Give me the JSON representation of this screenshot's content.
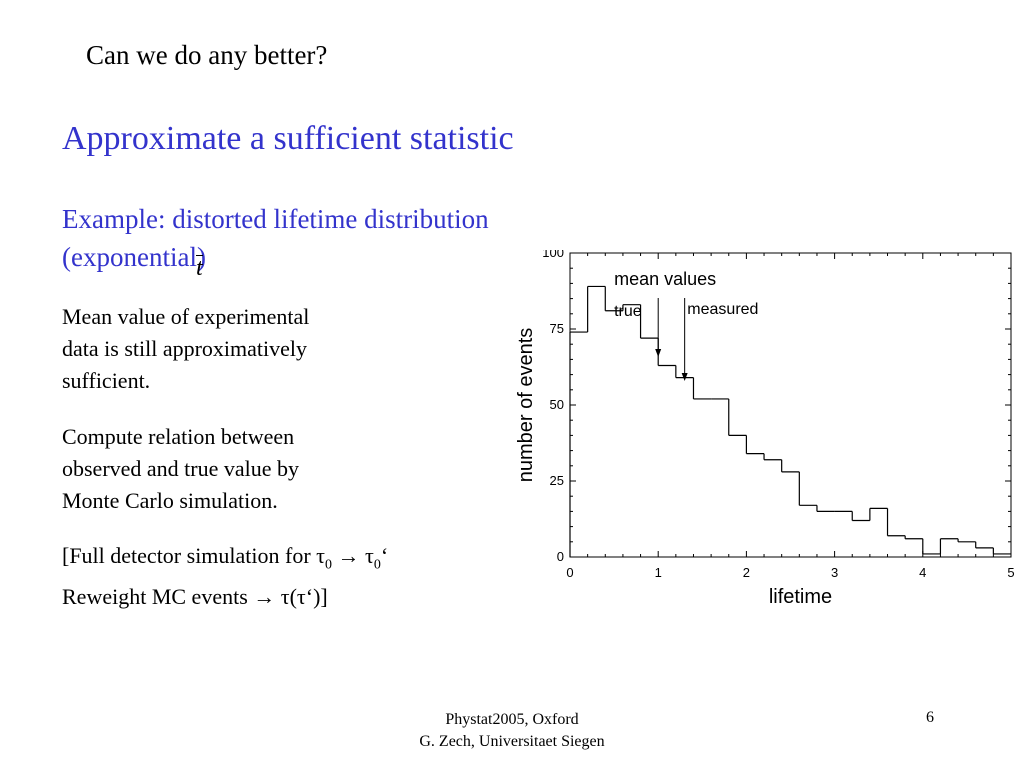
{
  "slide": {
    "top_question": "Can we do any better?",
    "heading": "Approximate a sufficient statistic",
    "subheading_1": "Example: distorted lifetime distribution",
    "subheading_2": "(exponential)",
    "t_bar_symbol": "t",
    "para1_line1": "Mean value   of experimental",
    "para1_line2": "data is still approximatively",
    "para1_line3": "sufficient.",
    "para2_line1": "Compute relation between",
    "para2_line2": "observed and true value by",
    "para2_line3": "Monte Carlo simulation.",
    "para3_line1_a": "[Full detector simulation for ",
    "para3_line1_tau0": "τ",
    "para3_line1_sub0": "0",
    "para3_line1_arrow": " → ",
    "para3_line1_tau0p": "τ",
    "para3_line1_sub0p": "0",
    "para3_line1_prime": "‘",
    "para3_line2": "Reweight MC events → τ(τ‘)]",
    "footer_line1": "Phystat2005, Oxford",
    "footer_line2": "G. Zech, Universitaet Siegen",
    "page_number": "6"
  },
  "chart_data": {
    "type": "histogram",
    "title": "",
    "xlabel": "lifetime",
    "ylabel": "number of events",
    "xlim": [
      0,
      5
    ],
    "ylim": [
      0,
      100
    ],
    "xticks": [
      "0",
      "1",
      "2",
      "3",
      "4",
      "5"
    ],
    "yticks": [
      "0",
      "25",
      "50",
      "75",
      "100"
    ],
    "bin_width": 0.2,
    "bin_edges_start": 0,
    "values": [
      74,
      89,
      81,
      83,
      72,
      63,
      59,
      52,
      52,
      40,
      34,
      32,
      28,
      17,
      15,
      15,
      12,
      16,
      7,
      6,
      1,
      6,
      5,
      3,
      1
    ],
    "annotations": {
      "header": "mean values",
      "true_label": "true",
      "measured_label": "measured",
      "true_x": 1.0,
      "measured_x": 1.3
    },
    "grid": false
  }
}
